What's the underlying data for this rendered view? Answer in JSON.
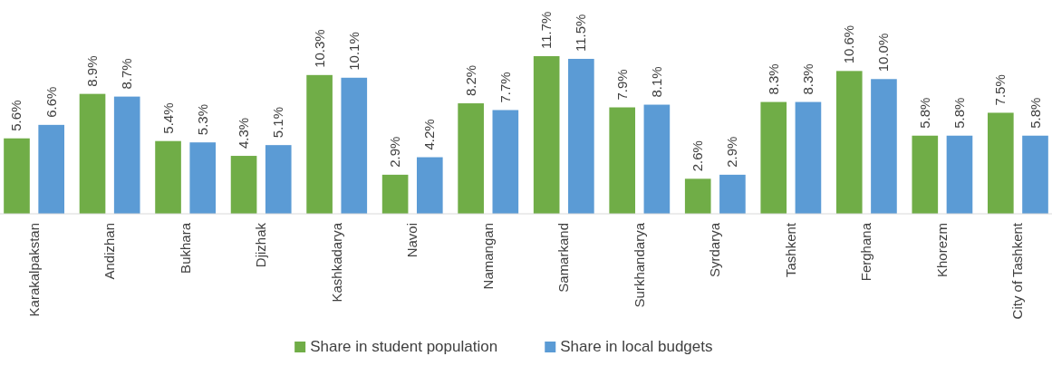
{
  "chart_data": {
    "type": "bar",
    "categories": [
      "Karakalpakstan",
      "Andizhan",
      "Bukhara",
      "Djizhak",
      "Kashkadarya",
      "Navoi",
      "Namangan",
      "Samarkand",
      "Surkhandarya",
      "Syrdarya",
      "Tashkent",
      "Ferghana",
      "Khorezm",
      "City of Tashkent"
    ],
    "series": [
      {
        "name": "Share in student population",
        "color": "#70ad47",
        "values": [
          5.6,
          8.9,
          5.4,
          4.3,
          10.3,
          2.9,
          8.2,
          11.7,
          7.9,
          2.6,
          8.3,
          10.6,
          5.8,
          7.5
        ],
        "value_labels": [
          "5.6%",
          "8.9%",
          "5.4%",
          "4.3%",
          "10.3%",
          "2.9%",
          "8.2%",
          "11.7%",
          "7.9%",
          "2.6%",
          "8.3%",
          "10.6%",
          "5.8%",
          "7.5%"
        ]
      },
      {
        "name": "Share in local budgets",
        "color": "#5b9bd5",
        "values": [
          6.6,
          8.7,
          5.3,
          5.1,
          10.1,
          4.2,
          7.7,
          11.5,
          8.1,
          2.9,
          8.3,
          10.0,
          5.8,
          5.8
        ],
        "value_labels": [
          "6.6%",
          "8.7%",
          "5.3%",
          "5.1%",
          "10.1%",
          "4.2%",
          "7.7%",
          "11.5%",
          "8.1%",
          "2.9%",
          "8.3%",
          "10.0%",
          "5.8%",
          "5.8%"
        ]
      }
    ],
    "legend": "bottom"
  }
}
